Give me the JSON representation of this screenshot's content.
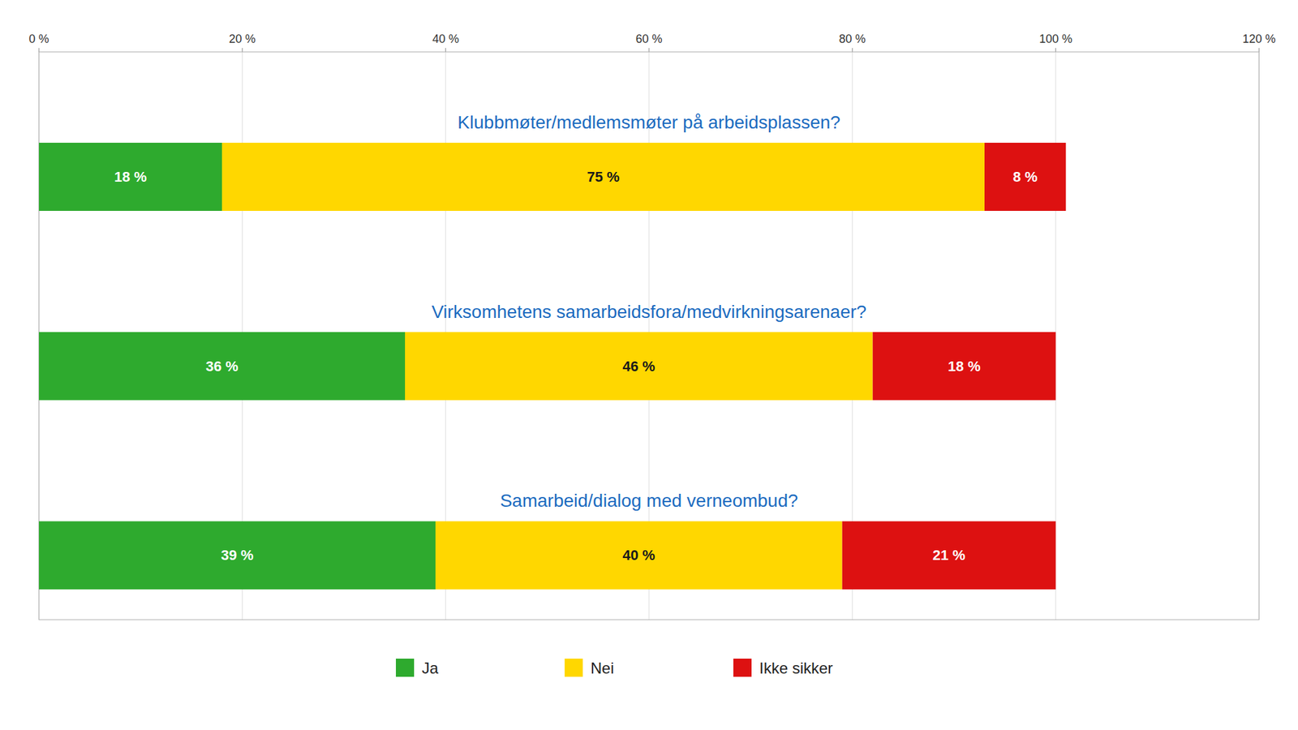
{
  "chart_data": {
    "type": "bar",
    "orientation": "horizontal",
    "stacked": true,
    "data_labels": true,
    "grid": true,
    "legend": "bottom",
    "categories": [
      "Klubbmøter/medlemsmøter på arbeidsplassen?",
      "Virksomhetens samarbeidsfora/medvirkningsarenaer?",
      "Samarbeid/dialog med verneombud?"
    ],
    "series": [
      {
        "name": "Ja",
        "color": "#2EAA2E",
        "values": [
          18,
          36,
          39
        ],
        "value_labels": [
          "18 %",
          "36 %",
          "39 %"
        ]
      },
      {
        "name": "Nei",
        "color": "#FFD700",
        "values": [
          75,
          46,
          40
        ],
        "value_labels": [
          "75 %",
          "46 %",
          "40 %"
        ]
      },
      {
        "name": "Ikke sikker",
        "color": "#DD1111",
        "values": [
          8,
          18,
          21
        ],
        "value_labels": [
          "8 %",
          "18 %",
          "21 %"
        ]
      }
    ],
    "xlim": [
      0,
      120
    ],
    "xticks": [
      {
        "value": 0,
        "label": "0 %"
      },
      {
        "value": 20,
        "label": "20 %"
      },
      {
        "value": 40,
        "label": "40 %"
      },
      {
        "value": 60,
        "label": "60 %"
      },
      {
        "value": 80,
        "label": "80 %"
      },
      {
        "value": 100,
        "label": "100 %"
      },
      {
        "value": 120,
        "label": "120 %"
      }
    ]
  }
}
